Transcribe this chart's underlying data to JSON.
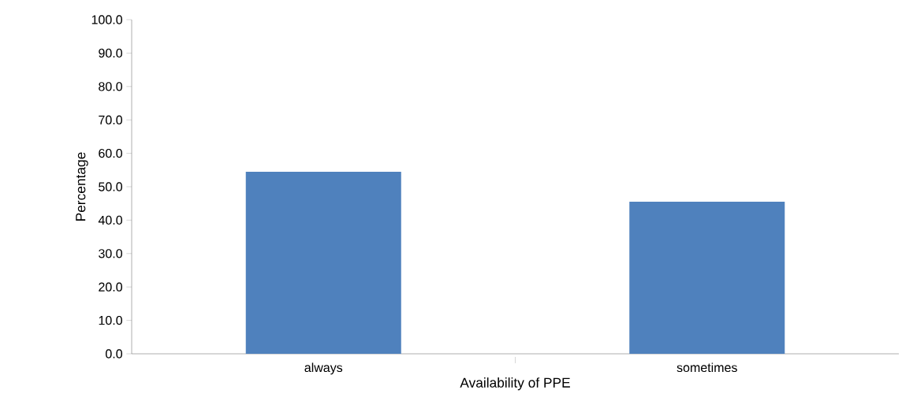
{
  "chart_data": {
    "type": "bar",
    "xlabel": "Availability of PPE",
    "ylabel": "Percentage",
    "categories": [
      "always",
      "sometimes"
    ],
    "values": [
      54.5,
      45.5
    ],
    "color": "#4f81bd",
    "ylim": [
      0,
      100
    ],
    "yticks": [
      {
        "value": 0,
        "label": "0.0"
      },
      {
        "value": 10,
        "label": "10.0"
      },
      {
        "value": 20,
        "label": "20.0"
      },
      {
        "value": 30,
        "label": "30.0"
      },
      {
        "value": 40,
        "label": "40.0"
      },
      {
        "value": 50,
        "label": "50.0"
      },
      {
        "value": 60,
        "label": "60.0"
      },
      {
        "value": 70,
        "label": "70.0"
      },
      {
        "value": 80,
        "label": "80.0"
      },
      {
        "value": 90,
        "label": "90.0"
      },
      {
        "value": 100,
        "label": "100.0"
      }
    ]
  }
}
